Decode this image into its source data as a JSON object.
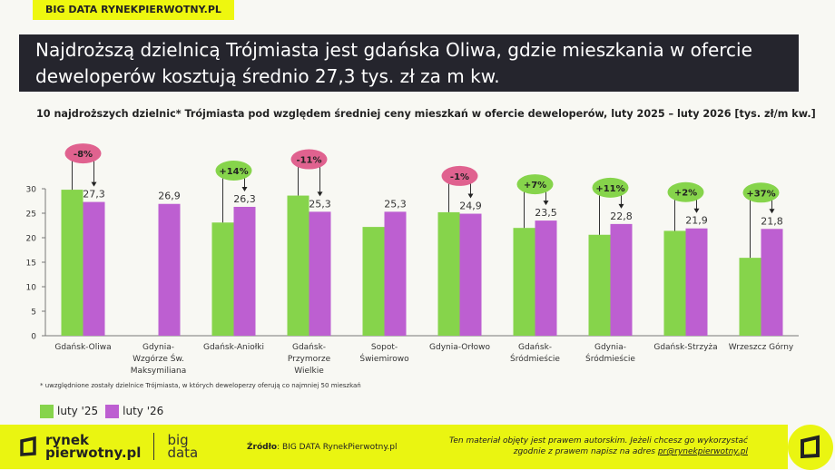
{
  "tag": "BIG DATA RYNEKPIERWOTNY.PL",
  "title": "Najdroższą dzielnicą Trójmiasta jest gdańska Oliwa, gdzie mieszkania w ofercie deweloperów kosztują średnio 27,3 tys. zł za m kw.",
  "chart_data": {
    "type": "bar",
    "title": "10 najdroższych dzielnic* Trójmiasta pod względem średniej ceny mieszkań w ofercie deweloperów, luty 2025 – luty 2026 [tys. zł/m kw.]",
    "categories": [
      "Gdańsk-Oliwa",
      "Gdynia-\nWzgórze Św.\nMaksymiliana",
      "Gdańsk-Aniołki",
      "Gdańsk-\nPrzymorze\nWielkie",
      "Sopot-\nŚwiemirowo",
      "Gdynia-Orłowo",
      "Gdańsk-\nŚródmieście",
      "Gdynia-\nŚródmieście",
      "Gdańsk-Strzyża",
      "Wrzeszcz Górny"
    ],
    "series": [
      {
        "name": "luty '25",
        "color": "#86d44b",
        "values": [
          29.8,
          null,
          23.1,
          28.6,
          22.2,
          25.2,
          22.0,
          20.6,
          21.4,
          15.9
        ]
      },
      {
        "name": "luty '26",
        "color": "#bd5fd1",
        "values": [
          27.3,
          26.9,
          26.3,
          25.3,
          25.3,
          24.9,
          23.5,
          22.8,
          21.9,
          21.8
        ],
        "labels": [
          "27,3",
          "26,9",
          "26,3",
          "25,3",
          "25,3",
          "24,9",
          "23,5",
          "22,8",
          "21,9",
          "21,8"
        ]
      }
    ],
    "changes": [
      "-8%",
      null,
      "+14%",
      "-11%",
      null,
      "-1%",
      "+7%",
      "+11%",
      "+2%",
      "+37%"
    ],
    "change_colors": {
      "negative": "#e0628f",
      "positive": "#86d44b"
    },
    "yticks": [
      "0",
      "5",
      "10",
      "15",
      "20",
      "25",
      "30"
    ],
    "ylim": [
      0,
      30
    ],
    "grid": false,
    "legend": "bottom-left"
  },
  "footnote": "* uwzględnione zostały dzielnice Trójmiasta, w których deweloperzy oferują co najmniej 50 mieszkań",
  "legend": [
    "luty '25",
    "luty '26"
  ],
  "footer": {
    "logo_line1": "rynek",
    "logo_line2": "pierwotny.pl",
    "logo_big1": "big",
    "logo_big2": "data",
    "source_label": "Źródło",
    "source": ": BIG DATA RynekPierwotny.pl",
    "copy1": "Ten materiał objęty jest prawem autorskim. Jeżeli chcesz go wykorzystać",
    "copy2": "zgodnie z prawem napisz na adres ",
    "email": "pr@rynekpierwotny.pl"
  }
}
